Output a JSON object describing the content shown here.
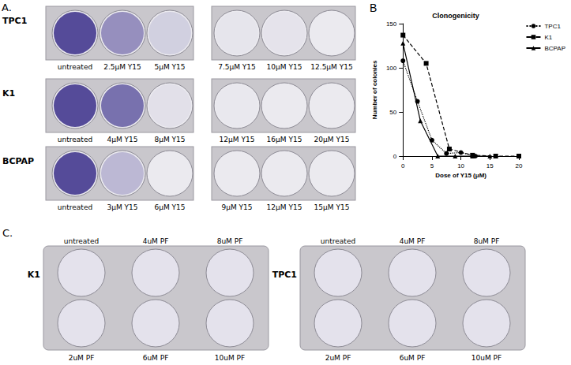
{
  "panel_A": {
    "label": "A.",
    "rows": [
      {
        "cell_line": "TPC1",
        "wells": [
          "untreated",
          "2.5μM Y15",
          "5μM Y15",
          "7.5μM Y15",
          "10μM Y15",
          "12.5μM Y15"
        ]
      },
      {
        "cell_line": "K1",
        "wells": [
          "untreated",
          "4μM Y15",
          "8μM Y15",
          "12μM Y15",
          "16μM Y15",
          "20μM Y15"
        ]
      },
      {
        "cell_line": "BCPAP",
        "wells": [
          "untreated",
          "3μM Y15",
          "6μM Y15",
          "9μM Y15",
          "12μM Y15",
          "15μM Y15"
        ]
      }
    ]
  },
  "chart_data": {
    "panel_label": "B",
    "type": "line",
    "title": "Clonogenicity",
    "x_label": "Dose of Y15 (μM)",
    "y_label": "Number of colonies",
    "xlim": [
      0,
      20
    ],
    "xticks": [
      0,
      5,
      10,
      15,
      20
    ],
    "ylim": [
      0,
      150
    ],
    "yticks": [
      0,
      50,
      100,
      150
    ],
    "grid": false,
    "legend": "right",
    "series": [
      {
        "name": "TPC1",
        "color": "#000000",
        "marker": "circle",
        "line_style": "dotted",
        "x": [
          0,
          2.5,
          5,
          7.5,
          10,
          12.5
        ],
        "values": [
          108,
          62,
          18,
          3,
          4,
          0
        ]
      },
      {
        "name": "K1",
        "color": "#000000",
        "marker": "square",
        "line_style": "dashed",
        "x": [
          0,
          4,
          8,
          12,
          16,
          20
        ],
        "values": [
          137,
          105,
          8,
          1,
          0,
          0
        ]
      },
      {
        "name": "BCPAP",
        "color": "#000000",
        "marker": "triangle",
        "line_style": "solid",
        "x": [
          0,
          3,
          6,
          9,
          12,
          15
        ],
        "values": [
          128,
          40,
          0,
          0,
          0,
          0
        ]
      }
    ]
  },
  "panel_C": {
    "label": "C.",
    "plates": [
      {
        "cell_line": "K1",
        "top": [
          "untreated",
          "4uM PF",
          "8uM PF"
        ],
        "bottom": [
          "2uM PF",
          "6uM PF",
          "10uM PF"
        ]
      },
      {
        "cell_line": "TPC1",
        "top": [
          "untreated",
          "4uM PF",
          "8uM PF"
        ],
        "bottom": [
          "2uM PF",
          "6uM PF",
          "10uM PF"
        ]
      }
    ]
  }
}
